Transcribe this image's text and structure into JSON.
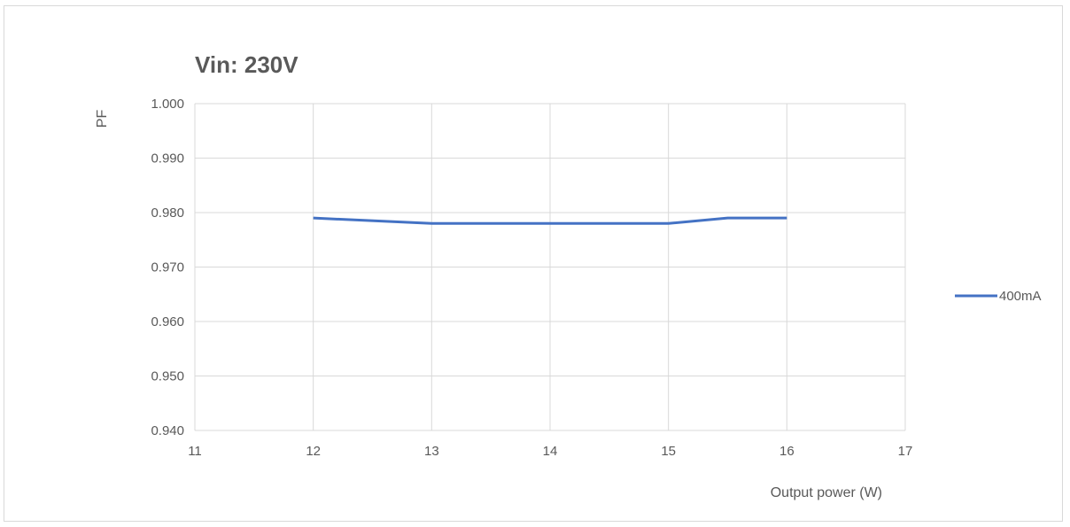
{
  "chart_data": {
    "type": "line",
    "title": "Vin: 230V",
    "xlabel": "Output power (W)",
    "ylabel": "PF",
    "xlim": [
      11,
      17
    ],
    "ylim": [
      0.94,
      1.0
    ],
    "xticks": [
      "11",
      "12",
      "13",
      "14",
      "15",
      "16",
      "17"
    ],
    "yticks": [
      "0.940",
      "0.950",
      "0.960",
      "0.970",
      "0.980",
      "0.990",
      "1.000"
    ],
    "grid": true,
    "legend_position": "right",
    "series": [
      {
        "name": "400mA",
        "color": "#4472C4",
        "x": [
          12,
          13,
          14,
          15,
          15.5,
          16
        ],
        "y": [
          0.979,
          0.978,
          0.978,
          0.978,
          0.979,
          0.979
        ]
      }
    ]
  }
}
